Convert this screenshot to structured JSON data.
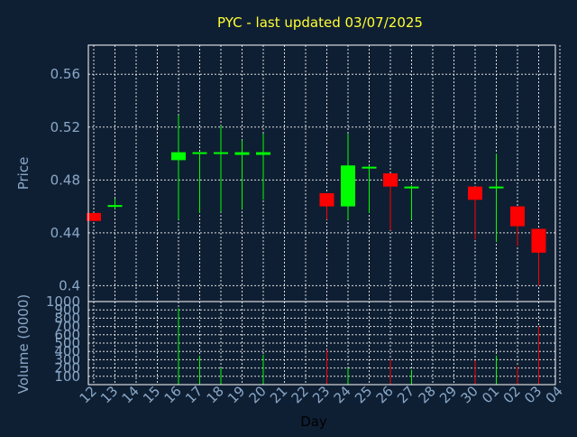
{
  "chart_data": {
    "type": "candlestick",
    "title": "PYC - last updated 03/07/2025",
    "xlabel": "Day",
    "price_axis": {
      "ylabel": "Price",
      "ylim": [
        0.388,
        0.582
      ],
      "ticks": [
        0.4,
        0.44,
        0.48,
        0.52,
        0.56
      ],
      "tick_labels": [
        "0.4",
        "0.44",
        "0.48",
        "0.52",
        "0.56"
      ]
    },
    "volume_axis": {
      "ylabel": "Volume (0000)",
      "ylim": [
        0,
        1000
      ],
      "ticks": [
        100,
        200,
        300,
        400,
        500,
        600,
        700,
        800,
        900,
        1000
      ],
      "tick_labels": [
        "100",
        "200",
        "300",
        "400",
        "500",
        "600",
        "700",
        "800",
        "900",
        "1000"
      ]
    },
    "x_ticks": [
      "12",
      "13",
      "14",
      "15",
      "16",
      "17",
      "18",
      "19",
      "20",
      "21",
      "22",
      "23",
      "24",
      "25",
      "26",
      "27",
      "28",
      "29",
      "30",
      "01",
      "02",
      "03",
      "04"
    ],
    "grid": true,
    "colors": {
      "up": "#00ff00",
      "down": "#ff0000",
      "background": "#0f1f33",
      "grid": "#ffffff",
      "title": "#ffff33",
      "tick": "#8aa8c8"
    },
    "candles": [
      {
        "day": "12",
        "open": 0.455,
        "high": 0.455,
        "low": 0.449,
        "close": 0.449,
        "volume": 0
      },
      {
        "day": "13",
        "open": 0.46,
        "high": 0.466,
        "low": 0.458,
        "close": 0.461,
        "volume": 0
      },
      {
        "day": "16",
        "open": 0.495,
        "high": 0.529,
        "low": 0.45,
        "close": 0.501,
        "volume": 920
      },
      {
        "day": "17",
        "open": 0.5,
        "high": 0.5,
        "low": 0.455,
        "close": 0.501,
        "volume": 350
      },
      {
        "day": "18",
        "open": 0.5,
        "high": 0.521,
        "low": 0.456,
        "close": 0.501,
        "volume": 200
      },
      {
        "day": "19",
        "open": 0.499,
        "high": 0.51,
        "low": 0.458,
        "close": 0.501,
        "volume": 0
      },
      {
        "day": "20",
        "open": 0.499,
        "high": 0.515,
        "low": 0.465,
        "close": 0.501,
        "volume": 360
      },
      {
        "day": "23",
        "open": 0.47,
        "high": 0.47,
        "low": 0.45,
        "close": 0.46,
        "volume": 420
      },
      {
        "day": "24",
        "open": 0.46,
        "high": 0.515,
        "low": 0.45,
        "close": 0.491,
        "volume": 200
      },
      {
        "day": "25",
        "open": 0.489,
        "high": 0.491,
        "low": 0.455,
        "close": 0.49,
        "volume": 0
      },
      {
        "day": "26",
        "open": 0.485,
        "high": 0.485,
        "low": 0.442,
        "close": 0.475,
        "volume": 300
      },
      {
        "day": "27",
        "open": 0.474,
        "high": 0.476,
        "low": 0.45,
        "close": 0.475,
        "volume": 180
      },
      {
        "day": "30",
        "open": 0.475,
        "high": 0.475,
        "low": 0.435,
        "close": 0.465,
        "volume": 290
      },
      {
        "day": "01",
        "open": 0.474,
        "high": 0.5,
        "low": 0.433,
        "close": 0.475,
        "volume": 350
      },
      {
        "day": "02",
        "open": 0.46,
        "high": 0.46,
        "low": 0.43,
        "close": 0.445,
        "volume": 220
      },
      {
        "day": "03",
        "open": 0.443,
        "high": 0.443,
        "low": 0.4,
        "close": 0.425,
        "volume": 700
      }
    ]
  }
}
